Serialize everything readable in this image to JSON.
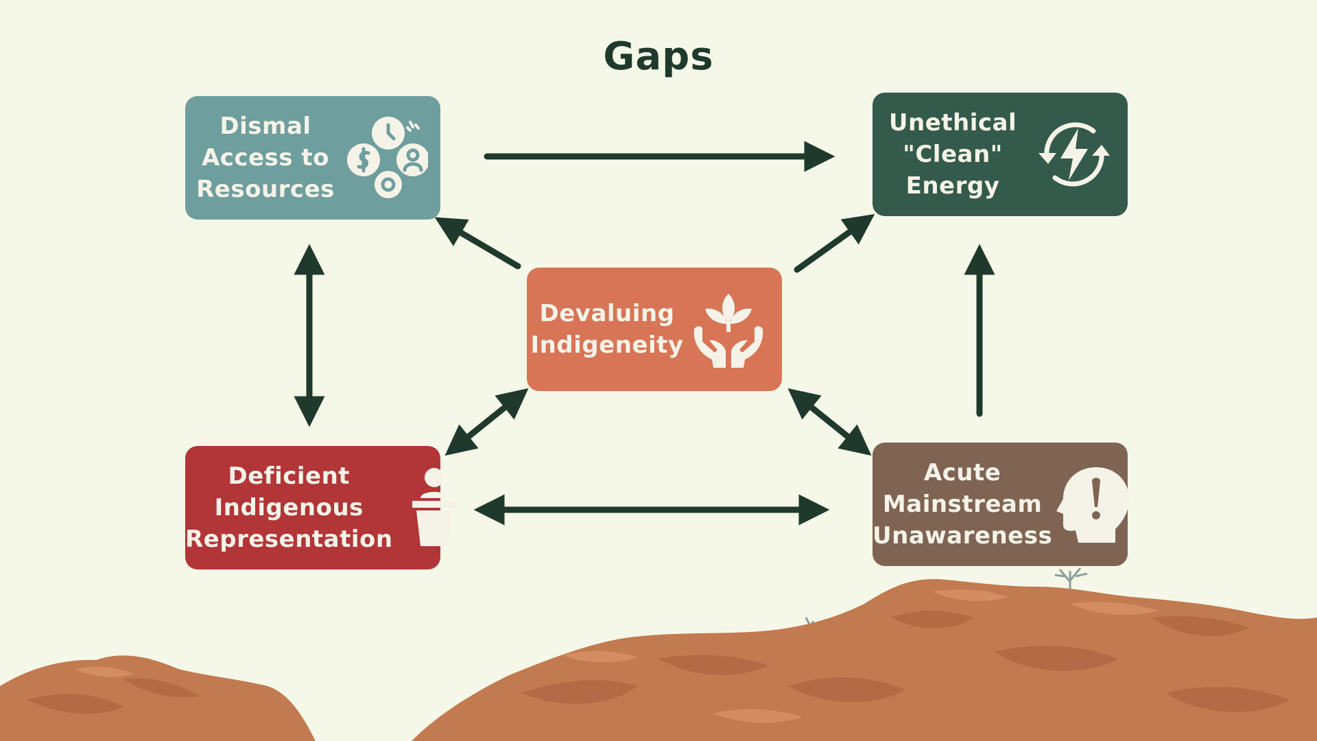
{
  "title": "Gaps",
  "nodes": {
    "dismal": {
      "lines": [
        "Dismal",
        "Access to",
        "Resources"
      ],
      "color": "#6e9e9d",
      "icon": "resources-icon"
    },
    "unethical": {
      "lines": [
        "Unethical",
        "\"Clean\"",
        "Energy"
      ],
      "color": "#335a4a",
      "icon": "renewable-energy-icon"
    },
    "devaluing": {
      "lines": [
        "Devaluing",
        "Indigeneity"
      ],
      "color": "#d77556",
      "icon": "hands-plant-icon"
    },
    "deficient": {
      "lines": [
        "Deficient",
        "Indigenous",
        "Representation"
      ],
      "color": "#b23538",
      "icon": "speaker-podium-icon"
    },
    "acute": {
      "lines": [
        "Acute",
        "Mainstream",
        "Unawareness"
      ],
      "color": "#7f6453",
      "icon": "head-exclamation-icon"
    }
  },
  "colors": {
    "arrow": "#1f3a2c",
    "background": "#f5f8e8",
    "rock": "#c27a50"
  }
}
